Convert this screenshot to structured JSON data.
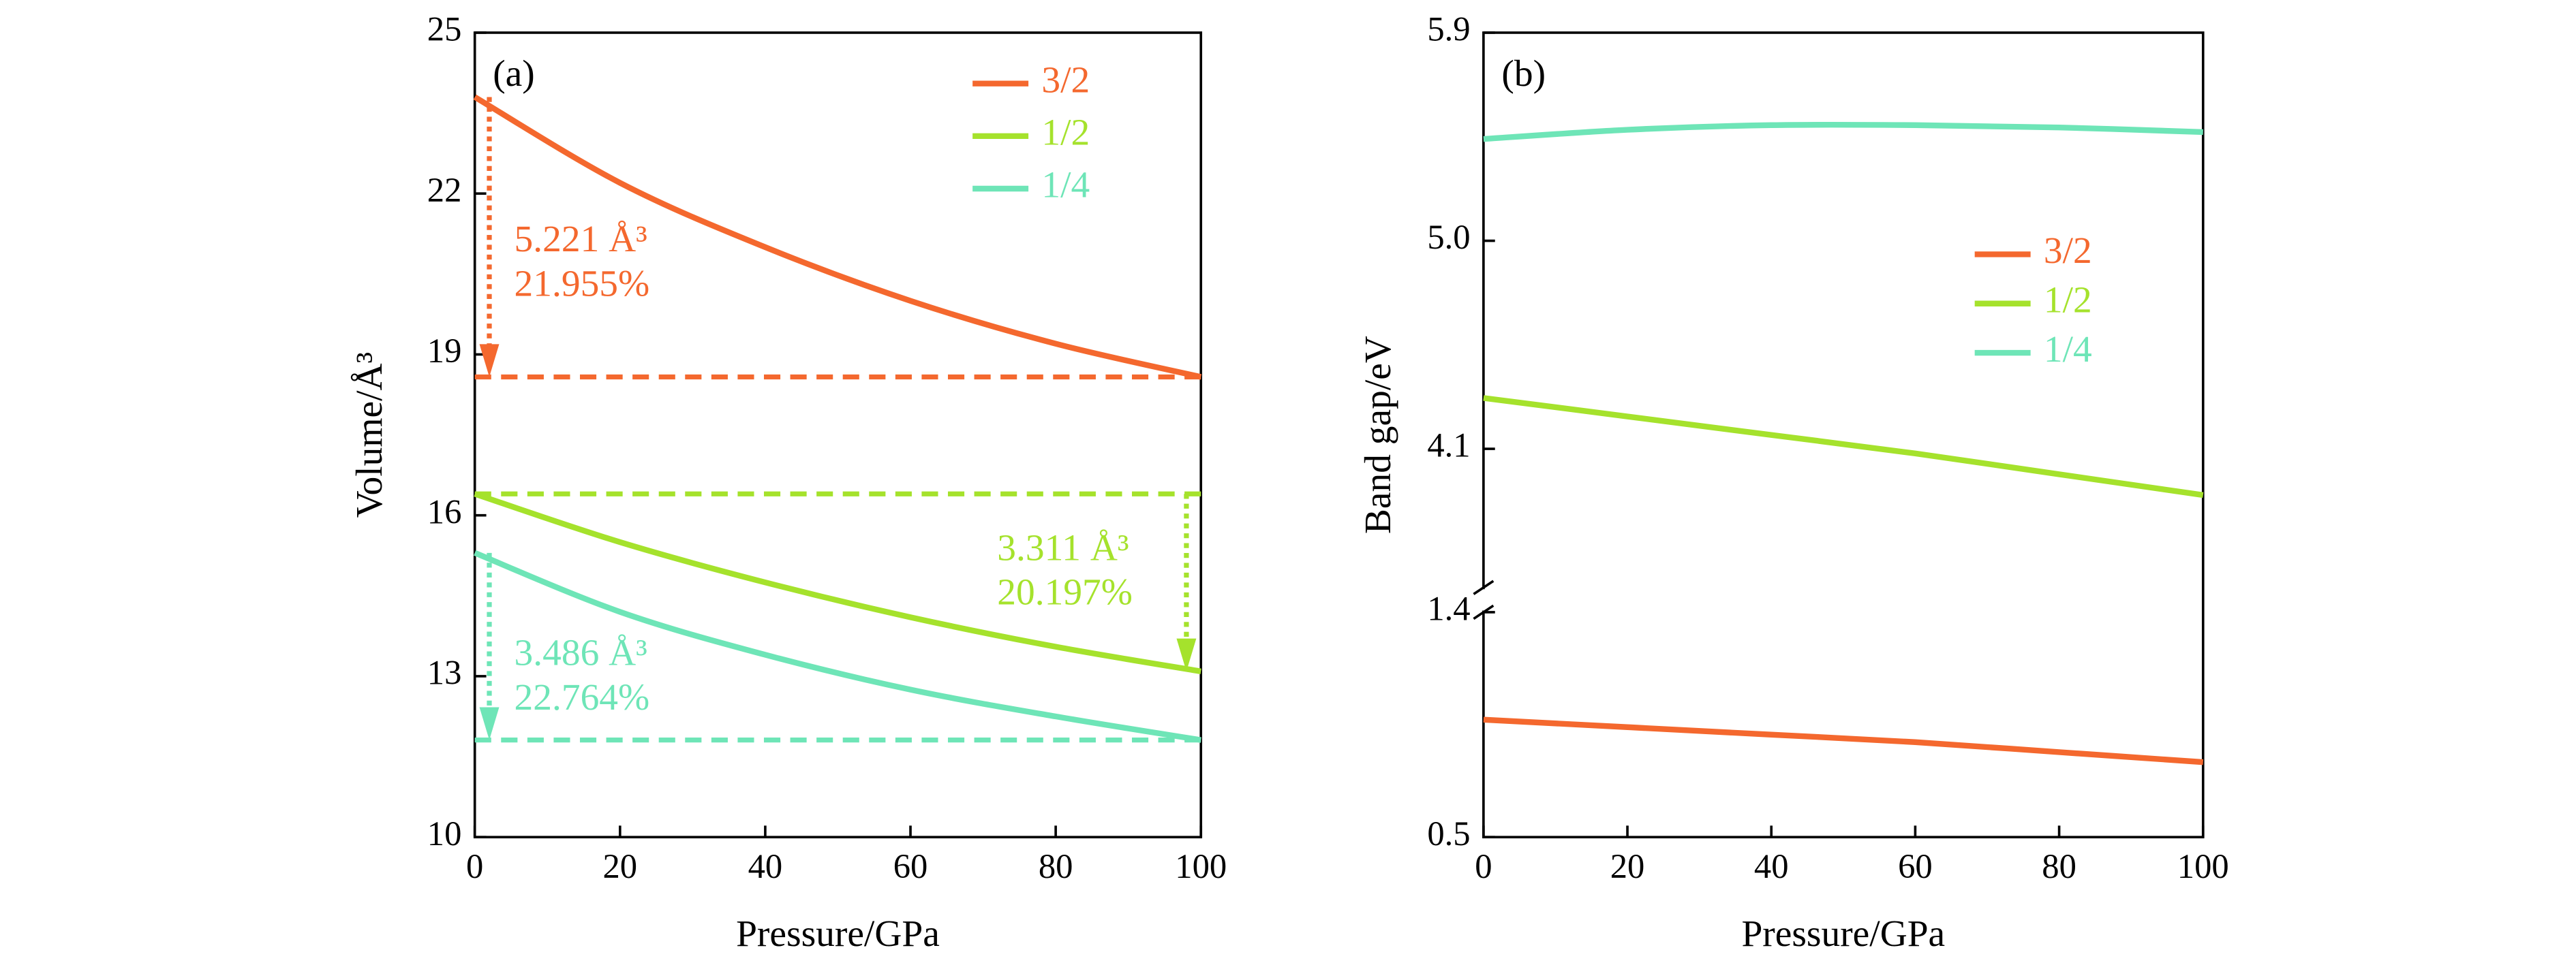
{
  "chart_data": [
    {
      "type": "line",
      "label": "(a)",
      "xlabel": "Pressure/GPa",
      "ylabel": "Volume/Å³",
      "x": [
        0,
        20,
        40,
        60,
        80,
        100
      ],
      "xlim": [
        0,
        100
      ],
      "xticks": [
        0,
        20,
        40,
        60,
        80,
        100
      ],
      "ylim": [
        10,
        25
      ],
      "yticks": [
        10,
        13,
        16,
        19,
        22,
        25
      ],
      "legend": "upper right",
      "series": [
        {
          "name": "3/2",
          "color": "#f4682e",
          "values": [
            23.8,
            22.2,
            21.0,
            20.0,
            19.2,
            18.58
          ]
        },
        {
          "name": "1/2",
          "color": "#a5e22c",
          "values": [
            16.4,
            15.5,
            14.75,
            14.1,
            13.55,
            13.09
          ]
        },
        {
          "name": "1/4",
          "color": "#6ee5b7",
          "values": [
            15.3,
            14.2,
            13.4,
            12.75,
            12.25,
            11.81
          ]
        }
      ],
      "annotations": [
        {
          "lines": [
            "5.221 Å³",
            "21.955%"
          ]
        },
        {
          "lines": [
            "3.311 Å³",
            "20.197%"
          ]
        },
        {
          "lines": [
            "3.486 Å³",
            "22.764%"
          ]
        }
      ]
    },
    {
      "type": "line",
      "label": "(b)",
      "xlabel": "Pressure/GPa",
      "ylabel": "Band gap/eV",
      "x": [
        0,
        20,
        40,
        60,
        80,
        100
      ],
      "xlim": [
        0,
        100
      ],
      "xticks": [
        0,
        20,
        40,
        60,
        80,
        100
      ],
      "segments": [
        {
          "ylim": [
            0.5,
            1.4
          ],
          "yticks": [
            0.5,
            1.4
          ]
        },
        {
          "ylim": [
            3.5,
            5.9
          ],
          "yticks": [
            4.1,
            {
              "value": 5,
              "label": "5.0"
            },
            5.9
          ]
        }
      ],
      "legend": "center right",
      "series": [
        {
          "name": "3/2",
          "color": "#f4682e",
          "values": [
            0.97,
            0.94,
            0.91,
            0.88,
            0.84,
            0.8
          ]
        },
        {
          "name": "1/2",
          "color": "#a5e22c",
          "values": [
            4.32,
            4.24,
            4.16,
            4.08,
            3.99,
            3.9
          ]
        },
        {
          "name": "1/4",
          "color": "#6ee5b7",
          "values": [
            5.44,
            5.48,
            5.5,
            5.5,
            5.49,
            5.47
          ]
        }
      ]
    }
  ]
}
